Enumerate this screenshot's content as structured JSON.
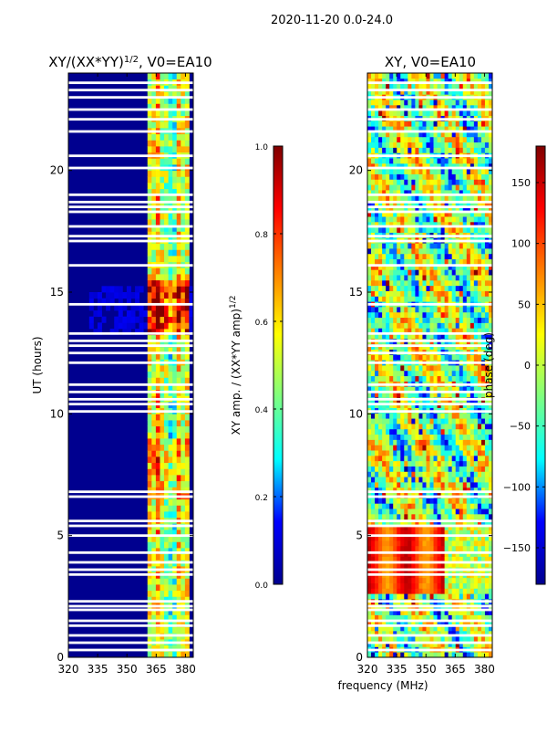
{
  "suptitle": "2020-11-20 0.0-24.0",
  "colormap": [
    "#00008f",
    "#0000ff",
    "#00ffff",
    "#7fff7f",
    "#ffff00",
    "#ff7f00",
    "#ff0000",
    "#7f0000"
  ],
  "chart_data": [
    {
      "type": "heatmap",
      "title_prefix": "XY/(XX*YY)",
      "title_exp": "1/2",
      "title_suffix": ", V0=EA10",
      "xlabel": "",
      "ylabel": "UT (hours)",
      "xlim": [
        320,
        384
      ],
      "ylim": [
        0,
        24
      ],
      "xticks": [
        320,
        335,
        350,
        365,
        380
      ],
      "yticks": [
        0,
        5,
        10,
        15,
        20
      ],
      "colorbar": {
        "label_prefix": "XY amp. / (XX*YY amp)",
        "label_exp": "1/2",
        "range": [
          0.0,
          1.0
        ],
        "ticks": [
          0.0,
          0.2,
          0.4,
          0.6,
          0.8,
          1.0
        ],
        "tick_labels": [
          "0.0",
          "0.2",
          "0.4",
          "0.6",
          "0.8",
          "1.0"
        ]
      }
    },
    {
      "type": "heatmap",
      "title": "XY, V0=EA10",
      "xlabel": "frequency (MHz)",
      "ylabel": "",
      "xlim": [
        320,
        384
      ],
      "ylim": [
        0,
        24
      ],
      "xticks": [
        320,
        335,
        350,
        365,
        380
      ],
      "yticks": [
        0,
        5,
        10,
        15,
        20
      ],
      "colorbar": {
        "label": "phase (deg)",
        "range": [
          -180,
          180
        ],
        "ticks": [
          -150,
          -100,
          -50,
          0,
          50,
          100,
          150
        ],
        "tick_labels": [
          "−150",
          "−100",
          "−50",
          "0",
          "50",
          "100",
          "150"
        ]
      }
    }
  ],
  "flagged_hours": [
    0.3,
    0.6,
    0.9,
    1.3,
    1.5,
    1.95,
    2.1,
    2.3,
    3.4,
    3.6,
    3.9,
    4.3,
    5.0,
    5.4,
    5.6,
    6.6,
    6.8,
    10.1,
    10.4,
    10.6,
    10.9,
    11.2,
    12.1,
    12.5,
    12.8,
    13.0,
    13.3,
    14.5,
    16.1,
    17.1,
    17.3,
    17.7,
    18.3,
    18.5,
    18.7,
    19.0,
    20.1,
    20.6,
    21.6,
    22.1,
    22.5,
    23.0,
    23.3,
    23.6
  ]
}
